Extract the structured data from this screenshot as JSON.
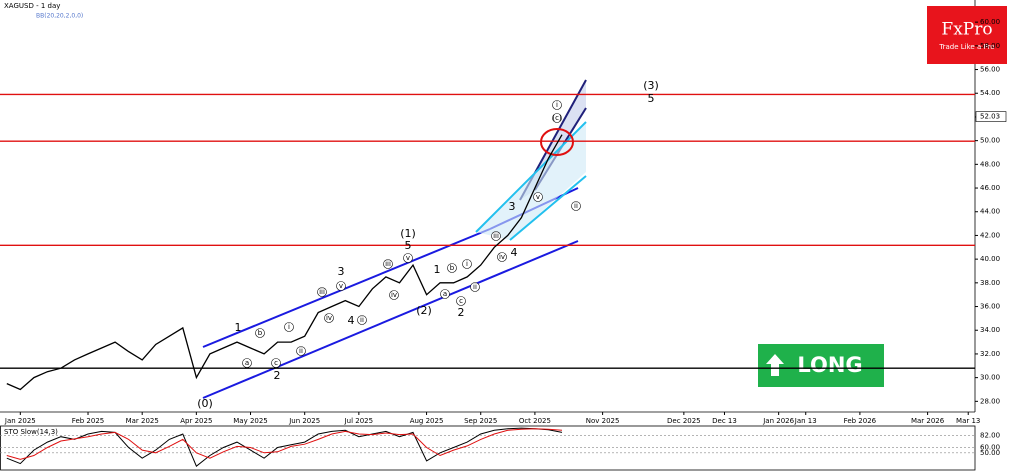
{
  "chart_data": {
    "type": "line",
    "title": "XAGUSD - 1 day",
    "indicator": "BB(20,20,2,0,0)",
    "logo": {
      "brand": "FxPro",
      "tagline": "Trade Like a Pro",
      "color": "#e8141c"
    },
    "signal": {
      "text": "LONG",
      "color": "#1fb14b"
    },
    "categories": [
      null,
      "Jan 2025",
      null,
      null,
      null,
      null,
      "Feb 2025",
      null,
      null,
      null,
      "Mar 2025",
      null,
      null,
      null,
      "Apr 2025",
      null,
      null,
      null,
      "May 2025",
      null,
      null,
      null,
      "Jun 2025",
      null,
      null,
      null,
      "Jul 2025",
      null,
      null,
      null,
      null,
      "Aug 2025",
      null,
      null,
      null,
      "Sep 2025",
      null,
      null,
      null,
      "Oct 2025",
      null,
      null,
      null,
      null,
      "Nov 2025",
      null,
      null,
      null,
      null,
      null,
      "Dec 2025",
      null,
      null,
      "Dec 13",
      null,
      null,
      null,
      "Jan 2026",
      null,
      "Jan 13",
      null,
      null,
      null,
      "Feb 2026",
      null,
      null,
      null,
      null,
      "Mar 2026",
      null,
      null,
      "Mar 13"
    ],
    "series": [
      {
        "color": "#000000",
        "values": [
          29.5,
          29.0,
          30.0,
          30.5,
          30.8,
          31.5,
          32.0,
          32.5,
          33.0,
          32.2,
          31.5,
          32.8,
          33.5,
          34.2,
          30.0,
          32.0,
          32.5,
          33.0,
          32.5,
          32.0,
          33.0,
          33.0,
          33.5,
          35.5,
          36.0,
          36.5,
          36.0,
          37.5,
          38.5,
          38.0,
          39.5,
          37.0,
          38.0,
          38.0,
          38.5,
          39.5,
          41.0,
          42.0,
          43.5,
          46.0,
          48.5,
          50.5,
          null,
          null,
          null,
          null,
          null,
          null,
          null,
          null,
          null,
          null,
          null,
          null,
          null,
          null,
          null,
          null,
          null,
          null,
          null,
          null,
          null,
          null,
          null,
          null,
          null,
          null,
          null,
          null,
          null,
          null
        ]
      }
    ],
    "ylim": [
      27.1,
      61.7
    ],
    "yticks": [
      {
        "value": 28,
        "label": "28.00"
      },
      {
        "value": 30,
        "label": "30.00"
      },
      {
        "value": 32,
        "label": "32.00"
      },
      {
        "value": 34,
        "label": "34.00"
      },
      {
        "value": 36,
        "label": "36.00"
      },
      {
        "value": 38,
        "label": "38.00"
      },
      {
        "value": 40,
        "label": "40.00"
      },
      {
        "value": 42,
        "label": "42.00"
      },
      {
        "value": 44,
        "label": "44.00"
      },
      {
        "value": 46,
        "label": "46.00"
      },
      {
        "value": 48,
        "label": "48.00"
      },
      {
        "value": 50,
        "label": "50.00"
      },
      {
        "value": 52,
        "label": "52.00"
      },
      {
        "value": 54,
        "label": "54.00"
      },
      {
        "value": 56,
        "label": "56.00"
      },
      {
        "value": 58,
        "label": "58.00"
      },
      {
        "value": 60,
        "label": "60.00"
      }
    ],
    "grid": false,
    "price_marker": {
      "value": 52.03,
      "label": "52.03"
    },
    "levels": [
      {
        "value": 53.9,
        "color": "#e01010"
      },
      {
        "value": 49.95,
        "color": "#e01010"
      },
      {
        "value": 41.17,
        "color": "#e01010"
      },
      {
        "value": 30.8,
        "color": "#000000"
      }
    ],
    "annotations": [
      "(0)",
      "1",
      "2",
      "3",
      "4",
      "5",
      "(1)",
      "(2)",
      "1",
      "2",
      "3",
      "4",
      "(3)",
      "5"
    ],
    "circled": [
      "a",
      "b",
      "c",
      "i",
      "ii",
      "iii",
      "iv",
      "v",
      "ii",
      "iii",
      "iv",
      "v",
      "a",
      "b",
      "c",
      "i",
      "ii",
      "iii",
      "iv",
      "v",
      "(c)",
      "i",
      "ii"
    ],
    "stoch": {
      "title": "STO Slow(14,3)",
      "ylim": [
        18,
        100
      ],
      "yticks": [
        {
          "value": 82,
          "label": "82.00"
        },
        {
          "value": 60,
          "label": "60.00"
        },
        {
          "value": 50,
          "label": "50.00"
        }
      ],
      "series": [
        {
          "color": "#000000",
          "values": [
            40,
            30,
            55,
            70,
            80,
            75,
            85,
            90,
            88,
            60,
            40,
            55,
            75,
            85,
            25,
            45,
            60,
            70,
            55,
            40,
            60,
            65,
            70,
            85,
            90,
            92,
            80,
            85,
            90,
            80,
            88,
            35,
            50,
            60,
            70,
            85,
            92,
            95,
            96,
            95,
            93,
            88,
            null,
            null,
            null,
            null,
            null,
            null,
            null,
            null,
            null,
            null,
            null,
            null,
            null,
            null,
            null,
            null,
            null,
            null,
            null,
            null,
            null,
            null,
            null,
            null,
            null,
            null,
            null,
            null,
            null,
            null
          ]
        },
        {
          "color": "#e01010",
          "values": [
            45,
            38,
            45,
            60,
            72,
            76,
            80,
            85,
            88,
            75,
            55,
            50,
            62,
            75,
            50,
            40,
            52,
            62,
            60,
            50,
            52,
            62,
            66,
            75,
            85,
            90,
            85,
            84,
            87,
            84,
            85,
            60,
            45,
            55,
            63,
            75,
            85,
            92,
            94,
            95,
            94,
            92,
            null,
            null,
            null,
            null,
            null,
            null,
            null,
            null,
            null,
            null,
            null,
            null,
            null,
            null,
            null,
            null,
            null,
            null,
            null,
            null,
            null,
            null,
            null,
            null,
            null,
            null,
            null,
            null,
            null,
            null
          ]
        }
      ]
    }
  }
}
